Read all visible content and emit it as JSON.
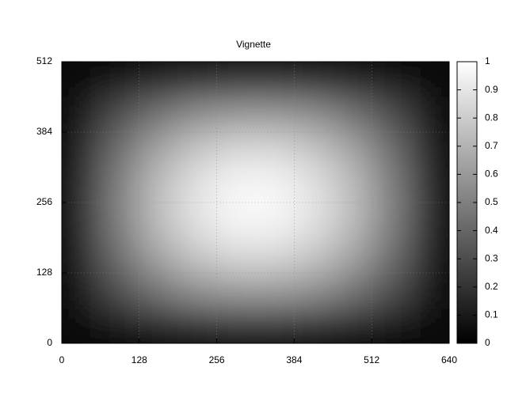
{
  "chart_data": {
    "type": "heatmap",
    "title": "Vignette",
    "x": [
      32,
      96,
      160,
      224,
      288,
      352,
      416,
      480,
      544,
      608
    ],
    "y": [
      32,
      96,
      160,
      224,
      288,
      352,
      416,
      480
    ],
    "z": [
      [
        0.04,
        0.12,
        0.17,
        0.21,
        0.23,
        0.23,
        0.21,
        0.17,
        0.12,
        0.04
      ],
      [
        0.12,
        0.31,
        0.46,
        0.56,
        0.6,
        0.6,
        0.56,
        0.46,
        0.31,
        0.12
      ],
      [
        0.16,
        0.44,
        0.65,
        0.78,
        0.85,
        0.85,
        0.78,
        0.65,
        0.44,
        0.16
      ],
      [
        0.19,
        0.5,
        0.74,
        0.89,
        0.97,
        0.97,
        0.89,
        0.74,
        0.5,
        0.19
      ],
      [
        0.19,
        0.5,
        0.74,
        0.89,
        0.97,
        0.97,
        0.89,
        0.74,
        0.5,
        0.19
      ],
      [
        0.16,
        0.44,
        0.65,
        0.78,
        0.85,
        0.85,
        0.78,
        0.65,
        0.44,
        0.16
      ],
      [
        0.12,
        0.31,
        0.46,
        0.56,
        0.6,
        0.6,
        0.56,
        0.46,
        0.31,
        0.12
      ],
      [
        0.04,
        0.12,
        0.17,
        0.21,
        0.23,
        0.23,
        0.21,
        0.17,
        0.12,
        0.04
      ]
    ],
    "xlim": [
      0,
      640
    ],
    "ylim": [
      0,
      512
    ],
    "xticks": [
      0,
      128,
      256,
      384,
      512,
      640
    ],
    "yticks": [
      0,
      128,
      256,
      384,
      512
    ],
    "grid": true,
    "colorbar": {
      "zlim": [
        0,
        1
      ],
      "ticks": [
        0,
        0.1,
        0.2,
        0.3,
        0.4,
        0.5,
        0.6,
        0.7,
        0.8,
        0.9,
        1
      ]
    }
  }
}
